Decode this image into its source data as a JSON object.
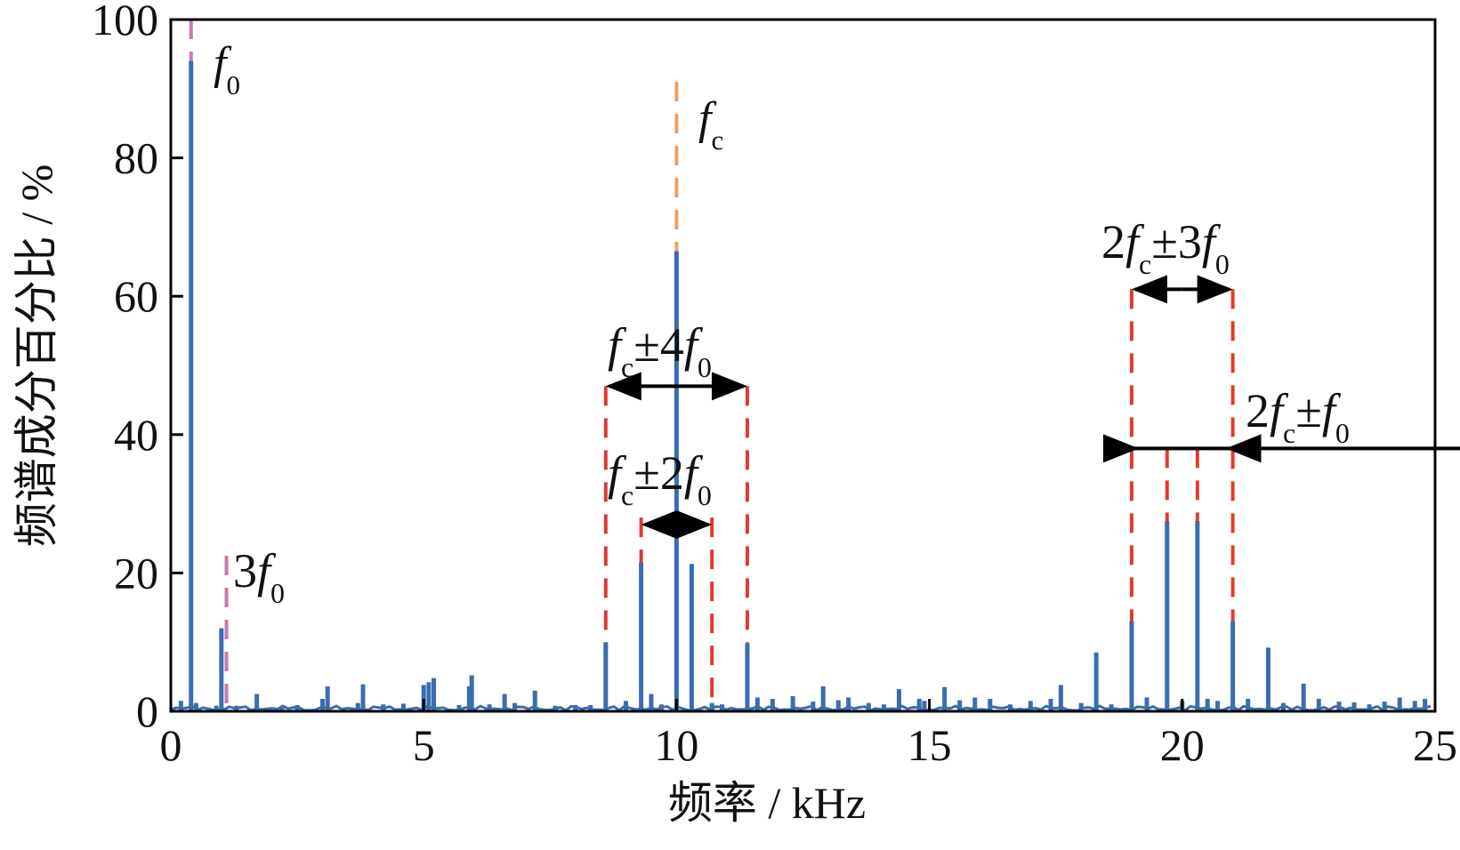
{
  "chart_data": {
    "type": "bar",
    "xlabel": "频率 / kHz",
    "ylabel": "频谱成分百分比 / %",
    "xlim": [
      0,
      25
    ],
    "ylim": [
      0,
      100
    ],
    "xticks": [
      "0",
      "5",
      "10",
      "15",
      "20",
      "25"
    ],
    "yticks": [
      "0",
      "20",
      "40",
      "60",
      "80",
      "100"
    ],
    "colors": {
      "bars": "#3b6cb0",
      "red_marker": "#e23a2e",
      "orange_marker": "#f0a060",
      "pink_marker": "#c87ab0",
      "axis": "#000000",
      "arrow": "#000000"
    },
    "series": [
      {
        "x": [
          0.2,
          0.4,
          0.5,
          0.9,
          1.0,
          1.3,
          1.7,
          2.2,
          2.5,
          3.0,
          3.1,
          3.7,
          3.8,
          4.2,
          4.6,
          5.0,
          5.1,
          5.2,
          5.7,
          5.9,
          5.95,
          6.3,
          6.6,
          6.8,
          7.2,
          7.6,
          8.0,
          8.3,
          8.6,
          9.0,
          9.3,
          9.5,
          9.7,
          10.0,
          10.3,
          10.7,
          10.9,
          11.4,
          11.6,
          11.9,
          12.3,
          12.7,
          12.9,
          13.2,
          13.4,
          13.8,
          14.1,
          14.4,
          14.8,
          14.9,
          15.3,
          15.6,
          15.9,
          16.2,
          16.6,
          17.0,
          17.4,
          17.6,
          18.0,
          18.3,
          18.6,
          19.0,
          19.3,
          19.7,
          20.0,
          20.3,
          20.5,
          20.7,
          21.0,
          21.3,
          21.7,
          22.0,
          22.4,
          22.7,
          23.1,
          23.4,
          23.7,
          24.0,
          24.3,
          24.6,
          24.8
        ],
        "values": [
          1.5,
          94,
          1.2,
          0.8,
          12,
          0.8,
          2.5,
          0.5,
          0.9,
          1.8,
          3.6,
          1.2,
          3.9,
          1.0,
          1.1,
          3.8,
          4.2,
          4.8,
          0.9,
          3.6,
          5.2,
          1.0,
          2.5,
          1.2,
          3.0,
          0.8,
          0.9,
          0.9,
          10,
          1.5,
          21.5,
          2.5,
          1.0,
          66.5,
          21.3,
          1.2,
          1.0,
          9.8,
          2.0,
          1.8,
          2.2,
          1.4,
          3.6,
          1.6,
          2.0,
          1.2,
          1.0,
          3.2,
          1.8,
          1.5,
          3.5,
          1.6,
          2.0,
          1.8,
          1.0,
          1.5,
          1.8,
          3.8,
          1.2,
          8.5,
          1.0,
          13,
          2.0,
          27.5,
          1.5,
          27.5,
          1.8,
          1.5,
          13,
          1.8,
          9.2,
          1.2,
          4.0,
          1.8,
          1.4,
          1.3,
          1.0,
          1.4,
          2.0,
          1.5,
          1.8
        ]
      }
    ],
    "markers": [
      {
        "x": 0.4,
        "top": 100,
        "color": "pink"
      },
      {
        "x": 1.1,
        "top": 22.5,
        "color": "pink"
      },
      {
        "x": 10.0,
        "top": 91,
        "color": "orange"
      },
      {
        "x": 8.6,
        "top": 47,
        "color": "red"
      },
      {
        "x": 11.4,
        "top": 47,
        "color": "red"
      },
      {
        "x": 9.3,
        "top": 28,
        "color": "red"
      },
      {
        "x": 10.7,
        "top": 28,
        "color": "red"
      },
      {
        "x": 19.0,
        "top": 61,
        "color": "red"
      },
      {
        "x": 21.0,
        "top": 61,
        "color": "red"
      },
      {
        "x": 19.7,
        "top": 38,
        "color": "red"
      },
      {
        "x": 20.3,
        "top": 38,
        "color": "red"
      }
    ],
    "arrows": [
      {
        "from": 8.6,
        "to": 11.4,
        "y": 47,
        "heads": "both"
      },
      {
        "from": 9.3,
        "to": 10.7,
        "y": 27,
        "heads": "both"
      },
      {
        "from": 19.0,
        "to": 21.0,
        "y": 61,
        "heads": "both"
      },
      {
        "from": 18.8,
        "to": 25,
        "y": 38,
        "heads": "inward",
        "inner": [
          19.0,
          21.0
        ]
      }
    ],
    "annotations": [
      {
        "label": "f0",
        "main": "f",
        "sub": "0",
        "prefix": "",
        "suffix": ""
      },
      {
        "label": "3f0",
        "main": "f",
        "sub": "0",
        "prefix": "3",
        "suffix": ""
      },
      {
        "label": "fc",
        "main": "f",
        "sub": "c",
        "prefix": "",
        "suffix": ""
      },
      {
        "label": "fc±4f0",
        "prefix": "",
        "parts": [
          [
            "f",
            "c"
          ],
          [
            "±4f",
            "0"
          ]
        ]
      },
      {
        "label": "fc±2f0",
        "prefix": "",
        "parts": [
          [
            "f",
            "c"
          ],
          [
            "±2f",
            "0"
          ]
        ]
      },
      {
        "label": "2fc±3f0",
        "prefix": "2",
        "parts": [
          [
            "f",
            "c"
          ],
          [
            "±3f",
            "0"
          ]
        ]
      },
      {
        "label": "2fc±f0",
        "prefix": "2",
        "parts": [
          [
            "f",
            "c"
          ],
          [
            "±f",
            "0"
          ]
        ]
      }
    ]
  }
}
